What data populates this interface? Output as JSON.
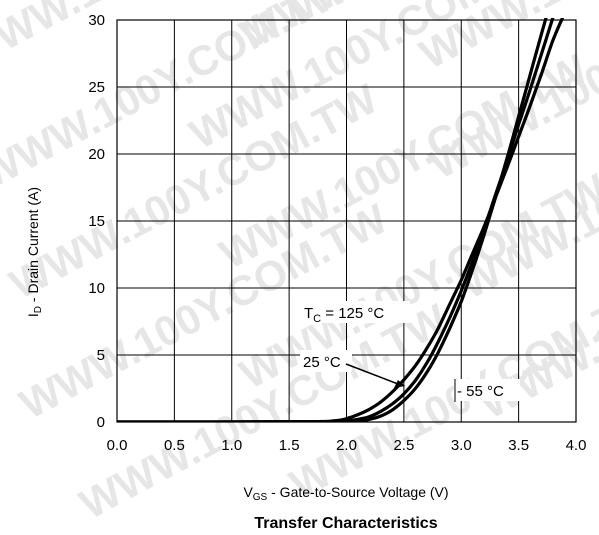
{
  "chart_data": {
    "type": "line",
    "title": "Transfer Characteristics",
    "xlabel": {
      "main": "V",
      "sub": "GS",
      "rest": " - Gate-to-Source Voltage (V)"
    },
    "ylabel": {
      "main": "I",
      "sub": "D",
      "rest": " - Drain Current (A)"
    },
    "xlim": [
      0.0,
      4.0
    ],
    "ylim": [
      0,
      30
    ],
    "xticks": [
      "0.0",
      "0.5",
      "1.0",
      "1.5",
      "2.0",
      "2.5",
      "3.0",
      "3.5",
      "4.0"
    ],
    "yticks": [
      "0",
      "5",
      "10",
      "15",
      "20",
      "25",
      "30"
    ],
    "grid": true,
    "series": [
      {
        "name": "TC = 125 °C",
        "x": [
          0.0,
          1.6,
          1.9,
          2.0,
          2.1,
          2.2,
          2.3,
          2.4,
          2.5,
          2.6,
          2.7,
          2.8,
          2.9,
          3.0,
          3.1,
          3.2,
          3.3,
          3.4,
          3.5,
          3.6,
          3.7,
          3.8,
          3.9
        ],
        "y": [
          0,
          0.02,
          0.1,
          0.25,
          0.55,
          0.95,
          1.5,
          2.25,
          3.15,
          4.2,
          5.5,
          7.0,
          8.8,
          10.6,
          12.6,
          14.6,
          16.8,
          19.0,
          21.3,
          23.6,
          26.0,
          28.5,
          30.5
        ]
      },
      {
        "name": "25 °C",
        "x": [
          0.0,
          1.8,
          2.0,
          2.1,
          2.2,
          2.3,
          2.4,
          2.5,
          2.6,
          2.7,
          2.8,
          2.9,
          3.0,
          3.1,
          3.2,
          3.3,
          3.4,
          3.5,
          3.6,
          3.7,
          3.8,
          3.9
        ],
        "y": [
          0,
          0.02,
          0.1,
          0.2,
          0.4,
          0.8,
          1.35,
          2.1,
          3.1,
          4.4,
          6.0,
          7.8,
          9.8,
          12.0,
          14.4,
          17.0,
          19.5,
          22.2,
          24.8,
          27.5,
          30.2,
          33.0
        ]
      },
      {
        "name": "- 55 °C",
        "x": [
          0.0,
          2.0,
          2.1,
          2.2,
          2.3,
          2.4,
          2.5,
          2.6,
          2.7,
          2.8,
          2.9,
          3.0,
          3.1,
          3.2,
          3.3,
          3.4,
          3.5,
          3.6,
          3.7,
          3.8,
          3.9
        ],
        "y": [
          0,
          0.02,
          0.08,
          0.2,
          0.45,
          0.9,
          1.6,
          2.5,
          3.7,
          5.2,
          7.0,
          9.0,
          11.4,
          14.0,
          16.8,
          19.7,
          22.8,
          25.9,
          29.0,
          32.0,
          35.0
        ]
      }
    ],
    "annotations": {
      "tc125": {
        "main": "T",
        "sub": "C",
        "rest": " = 125 °C"
      },
      "t25": "25 °C",
      "tm55": "- 55 °C"
    },
    "watermark": "WWW.100Y.COM.TW"
  }
}
